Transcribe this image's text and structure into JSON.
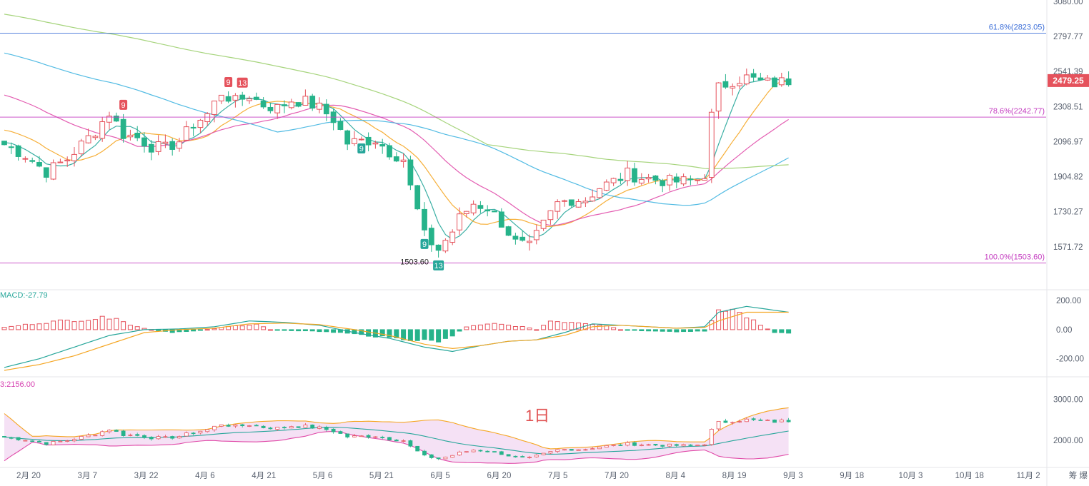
{
  "chart_data": {
    "type": "candlestick",
    "interval_label": "1日",
    "price_axis": {
      "ticks": [
        "3080.00",
        "2797.77",
        "2541.39",
        "2308.51",
        "2096.97",
        "1904.82",
        "1730.27",
        "1571.72"
      ],
      "range": [
        1450,
        3080
      ],
      "scale": "log",
      "current_price": "2479.25"
    },
    "x_axis": {
      "ticks": [
        "2月 20",
        "3月 7",
        "3月 22",
        "4月 6",
        "4月 21",
        "5月 6",
        "5月 21",
        "6月 5",
        "6月 20",
        "7月 5",
        "7月 20",
        "8月 4",
        "8月 19",
        "9月 3",
        "9月 18",
        "10月 3",
        "10月 18",
        "11月 2"
      ],
      "right_label": "筹 爆"
    },
    "fib_levels": [
      {
        "label": "61.8%(2823.05)",
        "value": 2823.05,
        "color": "#3d6fd8"
      },
      {
        "label": "78.6%(2242.77)",
        "value": 2242.77,
        "color": "#c43cc0"
      },
      {
        "label": "100.0%(1503.60)",
        "value": 1503.6,
        "color": "#c43cc0"
      }
    ],
    "low_annotation": {
      "label": "1503.60",
      "value": 1503.6
    },
    "price_keypoints": [
      [
        0,
        2080
      ],
      [
        3,
        2020
      ],
      [
        6,
        1930
      ],
      [
        9,
        2000
      ],
      [
        11,
        2080
      ],
      [
        13,
        2160
      ],
      [
        15,
        2270
      ],
      [
        17,
        2140
      ],
      [
        19,
        2120
      ],
      [
        21,
        2070
      ],
      [
        23,
        2060
      ],
      [
        25,
        2100
      ],
      [
        27,
        2200
      ],
      [
        29,
        2260
      ],
      [
        31,
        2400
      ],
      [
        33,
        2340
      ],
      [
        35,
        2380
      ],
      [
        37,
        2320
      ],
      [
        39,
        2300
      ],
      [
        41,
        2350
      ],
      [
        43,
        2340
      ],
      [
        45,
        2300
      ],
      [
        47,
        2230
      ],
      [
        49,
        2090
      ],
      [
        51,
        2100
      ],
      [
        53,
        2110
      ],
      [
        55,
        2040
      ],
      [
        57,
        2000
      ],
      [
        58,
        1850
      ],
      [
        60,
        1620
      ],
      [
        62,
        1560
      ],
      [
        64,
        1640
      ],
      [
        65,
        1700
      ],
      [
        67,
        1770
      ],
      [
        69,
        1750
      ],
      [
        71,
        1680
      ],
      [
        73,
        1590
      ],
      [
        75,
        1570
      ],
      [
        77,
        1670
      ],
      [
        79,
        1770
      ],
      [
        81,
        1790
      ],
      [
        83,
        1790
      ],
      [
        85,
        1850
      ],
      [
        87,
        1880
      ],
      [
        89,
        1920
      ],
      [
        91,
        1900
      ],
      [
        93,
        1890
      ],
      [
        95,
        1880
      ],
      [
        97,
        1880
      ],
      [
        99,
        1890
      ],
      [
        100,
        1920
      ],
      [
        101,
        2250
      ],
      [
        102,
        2430
      ],
      [
        104,
        2480
      ],
      [
        106,
        2500
      ],
      [
        108,
        2470
      ],
      [
        110,
        2460
      ],
      [
        112,
        2480
      ]
    ],
    "nine_signals": [
      {
        "label": "9",
        "type": "sell",
        "index": 17
      },
      {
        "label": "9",
        "type": "sell",
        "index": 32
      },
      {
        "label": "13",
        "type": "sell",
        "index": 34
      },
      {
        "label": "9",
        "type": "buy",
        "index": 51
      },
      {
        "label": "9",
        "type": "buy",
        "index": 60
      },
      {
        "label": "13",
        "type": "buy",
        "index": 62
      }
    ],
    "macd": {
      "label": "MACD:-27.79",
      "ticks": [
        "200.00",
        "0.00",
        "-200.00"
      ],
      "range": [
        -290,
        245
      ],
      "dif_keypoints": [
        [
          0,
          -260
        ],
        [
          5,
          -200
        ],
        [
          10,
          -120
        ],
        [
          15,
          -40
        ],
        [
          20,
          0
        ],
        [
          25,
          5
        ],
        [
          30,
          20
        ],
        [
          35,
          60
        ],
        [
          40,
          50
        ],
        [
          45,
          30
        ],
        [
          50,
          -20
        ],
        [
          55,
          -60
        ],
        [
          60,
          -120
        ],
        [
          64,
          -150
        ],
        [
          68,
          -110
        ],
        [
          72,
          -80
        ],
        [
          76,
          -70
        ],
        [
          80,
          -20
        ],
        [
          84,
          40
        ],
        [
          88,
          30
        ],
        [
          92,
          20
        ],
        [
          96,
          10
        ],
        [
          100,
          20
        ],
        [
          102,
          120
        ],
        [
          106,
          160
        ],
        [
          112,
          120
        ]
      ],
      "dea_keypoints": [
        [
          0,
          -280
        ],
        [
          5,
          -240
        ],
        [
          10,
          -180
        ],
        [
          15,
          -100
        ],
        [
          20,
          -20
        ],
        [
          25,
          0
        ],
        [
          30,
          10
        ],
        [
          35,
          40
        ],
        [
          40,
          45
        ],
        [
          45,
          35
        ],
        [
          50,
          0
        ],
        [
          55,
          -40
        ],
        [
          60,
          -100
        ],
        [
          64,
          -130
        ],
        [
          68,
          -110
        ],
        [
          72,
          -80
        ],
        [
          76,
          -70
        ],
        [
          80,
          -40
        ],
        [
          84,
          20
        ],
        [
          88,
          30
        ],
        [
          92,
          20
        ],
        [
          96,
          10
        ],
        [
          100,
          15
        ],
        [
          102,
          60
        ],
        [
          106,
          120
        ],
        [
          112,
          120
        ]
      ],
      "hist_keypoints": [
        [
          0,
          15
        ],
        [
          4,
          40
        ],
        [
          8,
          60
        ],
        [
          12,
          70
        ],
        [
          16,
          90
        ],
        [
          18,
          30
        ],
        [
          21,
          0
        ],
        [
          24,
          -20
        ],
        [
          28,
          -5
        ],
        [
          32,
          20
        ],
        [
          36,
          40
        ],
        [
          38,
          0
        ],
        [
          40,
          -5
        ],
        [
          44,
          -10
        ],
        [
          48,
          -20
        ],
        [
          52,
          -40
        ],
        [
          56,
          -60
        ],
        [
          62,
          -80
        ],
        [
          64,
          -40
        ],
        [
          66,
          20
        ],
        [
          70,
          40
        ],
        [
          74,
          20
        ],
        [
          76,
          0
        ],
        [
          78,
          60
        ],
        [
          82,
          50
        ],
        [
          86,
          30
        ],
        [
          88,
          0
        ],
        [
          92,
          -10
        ],
        [
          96,
          -15
        ],
        [
          100,
          -10
        ],
        [
          102,
          120
        ],
        [
          104,
          140
        ],
        [
          106,
          90
        ],
        [
          108,
          30
        ],
        [
          110,
          -20
        ],
        [
          112,
          -27
        ]
      ]
    },
    "boll": {
      "label": "3:2156.00",
      "ticks": [
        "3000.00",
        "2000.00"
      ],
      "range": [
        1450,
        3300
      ]
    }
  }
}
